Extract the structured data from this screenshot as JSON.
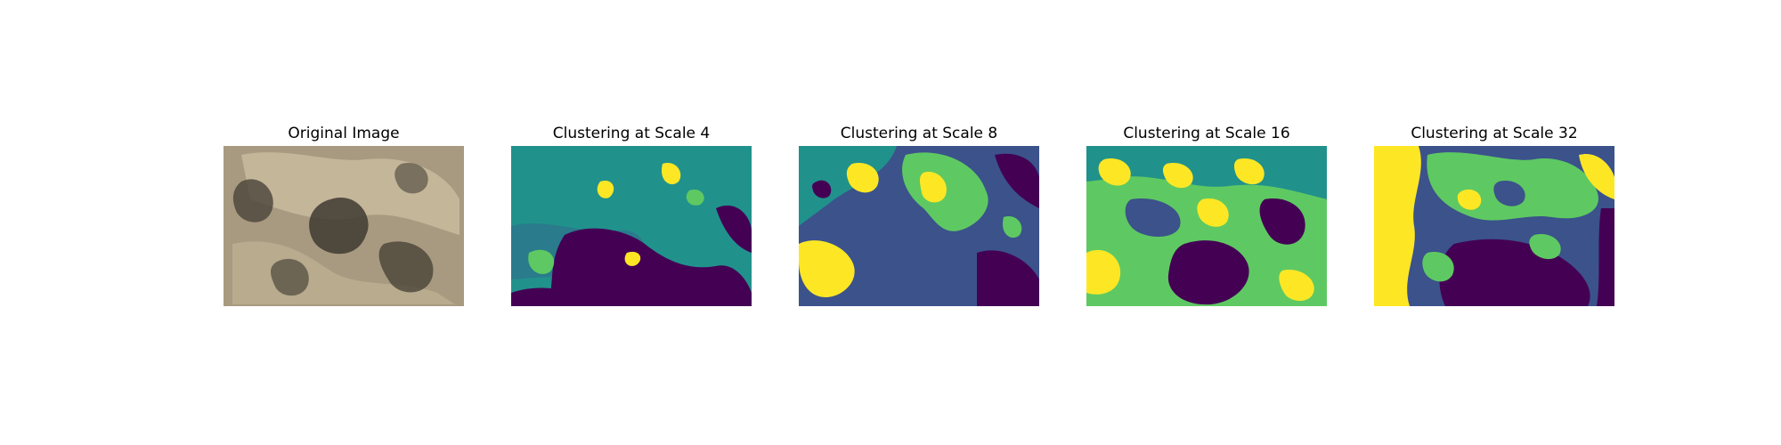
{
  "figure": {
    "panels": [
      {
        "id": "original",
        "title": "Original Image",
        "kind": "photo"
      },
      {
        "id": "scale4",
        "title": "Clustering at Scale 4",
        "kind": "clusters",
        "scale": 4
      },
      {
        "id": "scale8",
        "title": "Clustering at Scale 8",
        "kind": "clusters",
        "scale": 8
      },
      {
        "id": "scale16",
        "title": "Clustering at Scale 16",
        "kind": "clusters",
        "scale": 16
      },
      {
        "id": "scale32",
        "title": "Clustering at Scale 32",
        "kind": "clusters",
        "scale": 32
      }
    ],
    "cluster_palette": [
      "#440154",
      "#3b528b",
      "#21918c",
      "#5ec962",
      "#fde725"
    ],
    "photo_palette": [
      "#b8a88e",
      "#8f806a",
      "#5a5245",
      "#3e3a33",
      "#d4c8b0"
    ]
  }
}
